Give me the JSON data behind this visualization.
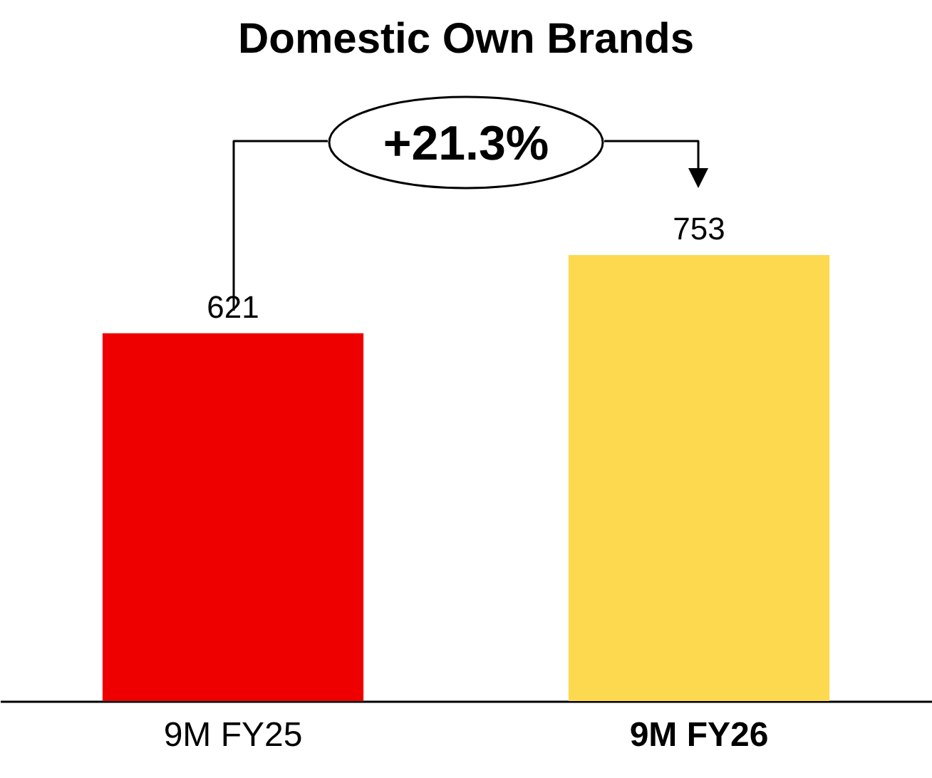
{
  "chart_data": {
    "type": "bar",
    "title": "Domestic Own Brands",
    "categories": [
      "9M FY25",
      "9M FY26"
    ],
    "values": [
      621,
      753
    ],
    "colors": [
      "#ee0000",
      "#fdd94f"
    ],
    "data_labels": true,
    "grid": false,
    "annotations": [
      "+21.3%"
    ]
  }
}
